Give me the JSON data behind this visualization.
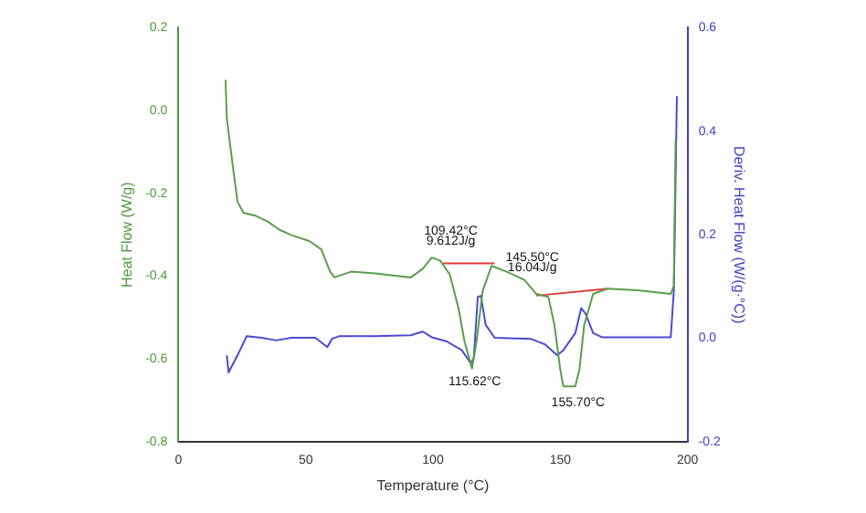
{
  "chart_data": {
    "type": "line",
    "xlabel": "Temperature (°C)",
    "ylabel": "Heat Flow (W/g)",
    "y2label": "Deriv. Heat Flow (W/(g·°C))",
    "xlim": [
      0,
      200
    ],
    "xticks": [
      0,
      50,
      100,
      150,
      200
    ],
    "ylim": [
      -0.8,
      0.2
    ],
    "yticks": [
      -0.8,
      -0.6,
      -0.4,
      -0.2,
      {
        "value": 0,
        "label": "0.0"
      },
      0.2
    ],
    "y2lim": [
      -0.2,
      0.6
    ],
    "y2ticks": [
      -0.2,
      {
        "value": 0,
        "label": "0.0"
      },
      0.2,
      0.4,
      0.6
    ],
    "grid": false,
    "legend": false,
    "marker": "none",
    "line_style": "solid",
    "series": [
      {
        "color": "#5a9e4b",
        "x": [
          18.5,
          19,
          20.9,
          23.2,
          25.6,
          30.3,
          35,
          39.7,
          44.4,
          51.4,
          56.1,
          59.6,
          61.3,
          67.8,
          77.2,
          91.3,
          96,
          99.5,
          102.8,
          106.6,
          110,
          112.4,
          115.3,
          117.1,
          119.5,
          123,
          128.9,
          135.9,
          140.6,
          145.3,
          147.7,
          150,
          151.2,
          155.9,
          157.5,
          159.4,
          162.9,
          168.8,
          180.5,
          193.4,
          194.6,
          195.3
        ],
        "values": [
          0.074,
          -0.018,
          -0.112,
          -0.22,
          -0.247,
          -0.254,
          -0.268,
          -0.288,
          -0.301,
          -0.315,
          -0.335,
          -0.389,
          -0.403,
          -0.389,
          -0.393,
          -0.403,
          -0.382,
          -0.355,
          -0.362,
          -0.396,
          -0.477,
          -0.558,
          -0.623,
          -0.558,
          -0.436,
          -0.375,
          -0.389,
          -0.409,
          -0.443,
          -0.45,
          -0.518,
          -0.626,
          -0.666,
          -0.666,
          -0.626,
          -0.518,
          -0.443,
          -0.43,
          -0.434,
          -0.443,
          -0.423,
          -0.072
        ]
      },
      {
        "color": "#4a4ad0",
        "axis": "y2",
        "x": [
          19,
          19.7,
          23.2,
          26.8,
          32.6,
          38.5,
          44.4,
          53.8,
          58.5,
          60.3,
          63.1,
          77.2,
          91.3,
          96,
          99.5,
          105.4,
          111.3,
          114.8,
          116,
          117.6,
          118.8,
          120.7,
          124.2,
          138.3,
          144.1,
          148.8,
          151.2,
          155.9,
          158.2,
          159.9,
          162.9,
          166.4,
          193.4,
          194.6,
          195.8
        ],
        "values": [
          -0.033,
          -0.066,
          -0.033,
          0.004,
          0.001,
          -0.004,
          0.001,
          0.001,
          -0.017,
          -0.001,
          0.004,
          0.004,
          0.006,
          0.013,
          0.002,
          -0.006,
          -0.023,
          -0.048,
          -0.039,
          0.08,
          0.082,
          0.026,
          0.001,
          -0.001,
          -0.012,
          -0.033,
          -0.023,
          0.01,
          0.058,
          0.048,
          0.01,
          0.002,
          0.002,
          0.091,
          0.468
        ]
      },
      {
        "color": "#e03a3a",
        "x": [
          103.8,
          124.2
        ],
        "values": [
          -0.369,
          -0.369
        ]
      },
      {
        "color": "#e03a3a",
        "x": [
          140.6,
          168.8
        ],
        "values": [
          -0.447,
          -0.43
        ]
      }
    ],
    "annotations": [
      "109.42°C",
      "9.612J/g",
      "115.62°C",
      "145.50°C",
      "16.04J/g",
      "155.70°C"
    ]
  }
}
